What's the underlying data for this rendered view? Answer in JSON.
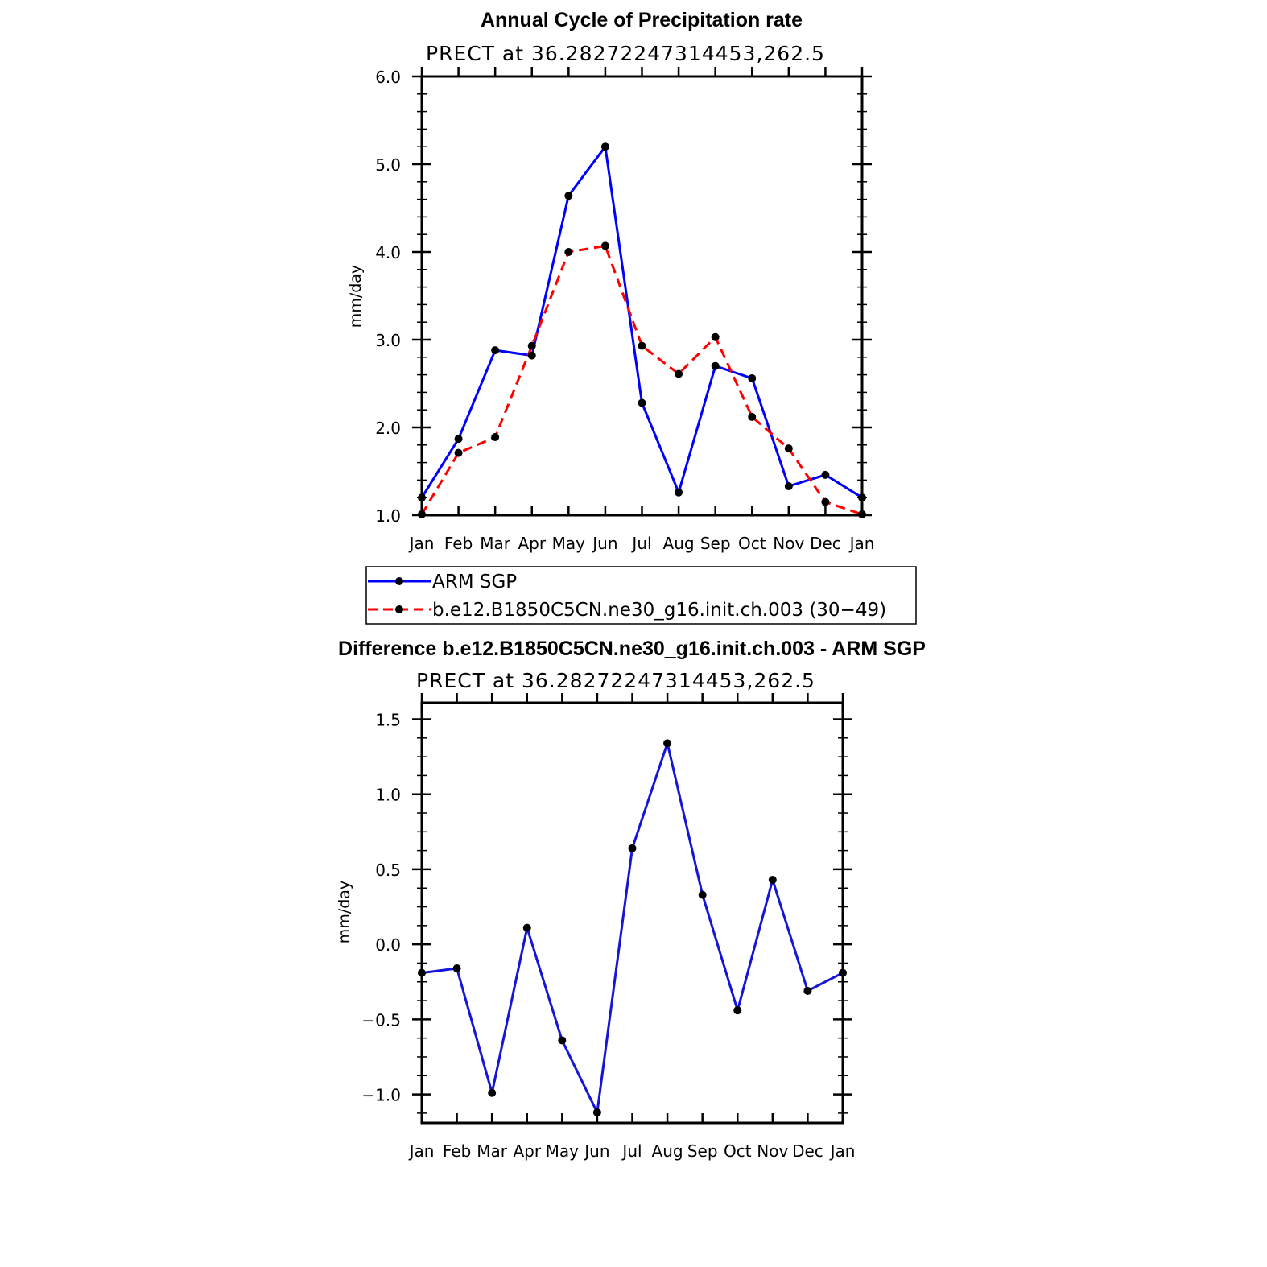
{
  "colors": {
    "obs": "#0000ff",
    "model": "#ff0000",
    "diff": "#1515d8",
    "marker": "#000000"
  },
  "chart_data": [
    {
      "type": "line",
      "title": "Annual Cycle of Precipitation rate",
      "subtitle": "PRECT at 36.28272247314453,262.5",
      "ylabel": "mm/day",
      "ylim": [
        1.0,
        6.0
      ],
      "yticks": [
        "1.0",
        "2.0",
        "3.0",
        "4.0",
        "5.0",
        "6.0"
      ],
      "yticks_values": [
        1.0,
        2.0,
        3.0,
        4.0,
        5.0,
        6.0
      ],
      "categories": [
        "Jan",
        "Feb",
        "Mar",
        "Apr",
        "May",
        "Jun",
        "Jul",
        "Aug",
        "Sep",
        "Oct",
        "Nov",
        "Dec",
        "Jan"
      ],
      "series": [
        {
          "name": "ARM SGP",
          "style": "solid",
          "values": [
            1.2,
            1.87,
            2.88,
            2.82,
            4.64,
            5.2,
            2.28,
            1.26,
            2.7,
            2.56,
            1.33,
            1.46,
            1.2
          ]
        },
        {
          "name": "b.e12.B1850C5CN.ne30_g16.init.ch.003 (30−49)",
          "style": "dashed",
          "values": [
            1.01,
            1.71,
            1.89,
            2.93,
            4.0,
            4.07,
            2.93,
            2.61,
            3.03,
            2.12,
            1.76,
            1.15,
            1.01
          ]
        }
      ],
      "legend": "below"
    },
    {
      "type": "line",
      "title": "Difference b.e12.B1850C5CN.ne30_g16.init.ch.003 - ARM SGP",
      "subtitle": "PRECT at 36.28272247314453,262.5",
      "ylabel": "mm/day",
      "ylim": [
        -1.19,
        1.61
      ],
      "yticks": [
        "−1.0",
        "−0.5",
        "0.0",
        "0.5",
        "1.0",
        "1.5"
      ],
      "yticks_values": [
        -1.0,
        -0.5,
        0.0,
        0.5,
        1.0,
        1.5
      ],
      "categories": [
        "Jan",
        "Feb",
        "Mar",
        "Apr",
        "May",
        "Jun",
        "Jul",
        "Aug",
        "Sep",
        "Oct",
        "Nov",
        "Dec",
        "Jan"
      ],
      "series": [
        {
          "name": "difference",
          "style": "solid",
          "values": [
            -0.19,
            -0.16,
            -0.99,
            0.11,
            -0.64,
            -1.12,
            0.64,
            1.34,
            0.33,
            -0.44,
            0.43,
            -0.31,
            -0.19
          ]
        }
      ]
    }
  ]
}
